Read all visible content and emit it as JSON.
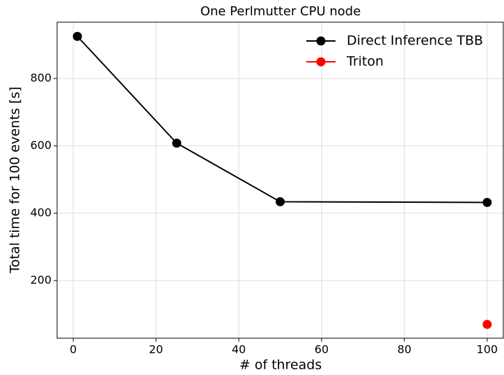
{
  "chart_data": {
    "type": "line",
    "title": "One Perlmutter CPU node",
    "x_label": "# of threads",
    "y_label": "Total time for 100 events [s]",
    "series": [
      {
        "name": "Direct Inference TBB",
        "color": "#000000",
        "x": [
          1,
          25,
          50,
          100
        ],
        "values": [
          925,
          608,
          434,
          432
        ]
      },
      {
        "name": "Triton",
        "color": "#ff0000",
        "x": [
          100
        ],
        "values": [
          70
        ]
      }
    ],
    "xlim": [
      -3.9,
      103.9
    ],
    "ylim": [
      29,
      967
    ],
    "xticks": [
      0,
      20,
      40,
      60,
      80,
      100
    ],
    "yticks": [
      200,
      400,
      600,
      800
    ],
    "grid": true,
    "legend": "upper right"
  }
}
